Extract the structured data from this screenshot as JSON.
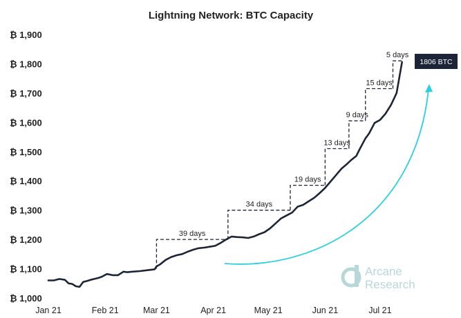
{
  "chart_data": {
    "type": "line",
    "title": "Lightning Network: BTC Capacity",
    "ylim": [
      1000,
      1900
    ],
    "yticks": [
      1000,
      1100,
      1200,
      1300,
      1400,
      1500,
      1600,
      1700,
      1800,
      1900
    ],
    "ytick_labels": [
      "₿ 1,000",
      "₿ 1,100",
      "₿ 1,200",
      "₿ 1,300",
      "₿ 1,400",
      "₿ 1,500",
      "₿ 1,600",
      "₿ 1,700",
      "₿ 1,800",
      "₿ 1,900"
    ],
    "xlim": [
      "2021-01-01",
      "2021-07-18"
    ],
    "xticks": [
      "2021-01-01",
      "2021-02-01",
      "2021-03-01",
      "2021-04-01",
      "2021-05-01",
      "2021-06-01",
      "2021-07-01"
    ],
    "xtick_labels": [
      "Jan 21",
      "Feb 21",
      "Mar 21",
      "Apr 21",
      "May 21",
      "Jun 21",
      "Jul 21"
    ],
    "grid": false,
    "line_color": "#1b2537",
    "series": [
      {
        "x": [
          "2021-01-01",
          "2021-01-04",
          "2021-01-07",
          "2021-01-10",
          "2021-01-12",
          "2021-01-14",
          "2021-01-16",
          "2021-01-18",
          "2021-01-20",
          "2021-01-22",
          "2021-01-24",
          "2021-01-26",
          "2021-01-28",
          "2021-01-30",
          "2021-02-02",
          "2021-02-05",
          "2021-02-08",
          "2021-02-11",
          "2021-02-13",
          "2021-02-16",
          "2021-02-20",
          "2021-02-24",
          "2021-02-28",
          "2021-03-01",
          "2021-03-03",
          "2021-03-06",
          "2021-03-09",
          "2021-03-12",
          "2021-03-15",
          "2021-03-18",
          "2021-03-21",
          "2021-03-24",
          "2021-03-27",
          "2021-03-30",
          "2021-04-02",
          "2021-04-05",
          "2021-04-08",
          "2021-04-11",
          "2021-04-14",
          "2021-04-17",
          "2021-04-20",
          "2021-04-23",
          "2021-04-26",
          "2021-04-29",
          "2021-05-02",
          "2021-05-05",
          "2021-05-08",
          "2021-05-11",
          "2021-05-14",
          "2021-05-17",
          "2021-05-20",
          "2021-05-23",
          "2021-05-26",
          "2021-05-29",
          "2021-06-01",
          "2021-06-04",
          "2021-06-07",
          "2021-06-10",
          "2021-06-13",
          "2021-06-15",
          "2021-06-18",
          "2021-06-20",
          "2021-06-23",
          "2021-06-25",
          "2021-06-28",
          "2021-07-01",
          "2021-07-04",
          "2021-07-07",
          "2021-07-10",
          "2021-07-13"
        ],
        "y": [
          1060,
          1060,
          1065,
          1062,
          1050,
          1048,
          1040,
          1038,
          1055,
          1058,
          1062,
          1065,
          1068,
          1072,
          1082,
          1078,
          1078,
          1090,
          1088,
          1090,
          1092,
          1095,
          1098,
          1108,
          1115,
          1130,
          1140,
          1146,
          1150,
          1158,
          1165,
          1170,
          1172,
          1175,
          1178,
          1188,
          1200,
          1210,
          1208,
          1207,
          1205,
          1210,
          1218,
          1225,
          1238,
          1255,
          1272,
          1282,
          1292,
          1312,
          1318,
          1330,
          1342,
          1358,
          1376,
          1398,
          1420,
          1442,
          1458,
          1470,
          1485,
          1510,
          1545,
          1562,
          1598,
          1608,
          1630,
          1660,
          1700,
          1806
        ]
      }
    ],
    "annotations": [
      {
        "label": "39 days",
        "from": "2021-03-01",
        "to": "2021-04-09",
        "y_from": 1100,
        "y_to": 1200
      },
      {
        "label": "34 days",
        "from": "2021-04-09",
        "to": "2021-05-13",
        "y_from": 1200,
        "y_to": 1300
      },
      {
        "label": "19 days",
        "from": "2021-05-13",
        "to": "2021-06-01",
        "y_from": 1300,
        "y_to": 1385
      },
      {
        "label": "13 days",
        "from": "2021-06-01",
        "to": "2021-06-14",
        "y_from": 1385,
        "y_to": 1510
      },
      {
        "label": "9 days",
        "from": "2021-06-14",
        "to": "2021-06-23",
        "y_from": 1510,
        "y_to": 1605
      },
      {
        "label": "15 days",
        "from": "2021-06-23",
        "to": "2021-07-08",
        "y_from": 1605,
        "y_to": 1715
      },
      {
        "label": "5 days",
        "from": "2021-07-08",
        "to": "2021-07-13",
        "y_from": 1715,
        "y_to": 1810
      }
    ],
    "end_label": "1806 BTC",
    "end_label_color": "#1b2537",
    "trend_arrow_color": "#2ad0e0"
  },
  "watermark": {
    "brand_line1": "Arcane",
    "brand_line2": "Research",
    "color": "#b8d7d9",
    "icon": "arcane-research-logo-icon"
  }
}
